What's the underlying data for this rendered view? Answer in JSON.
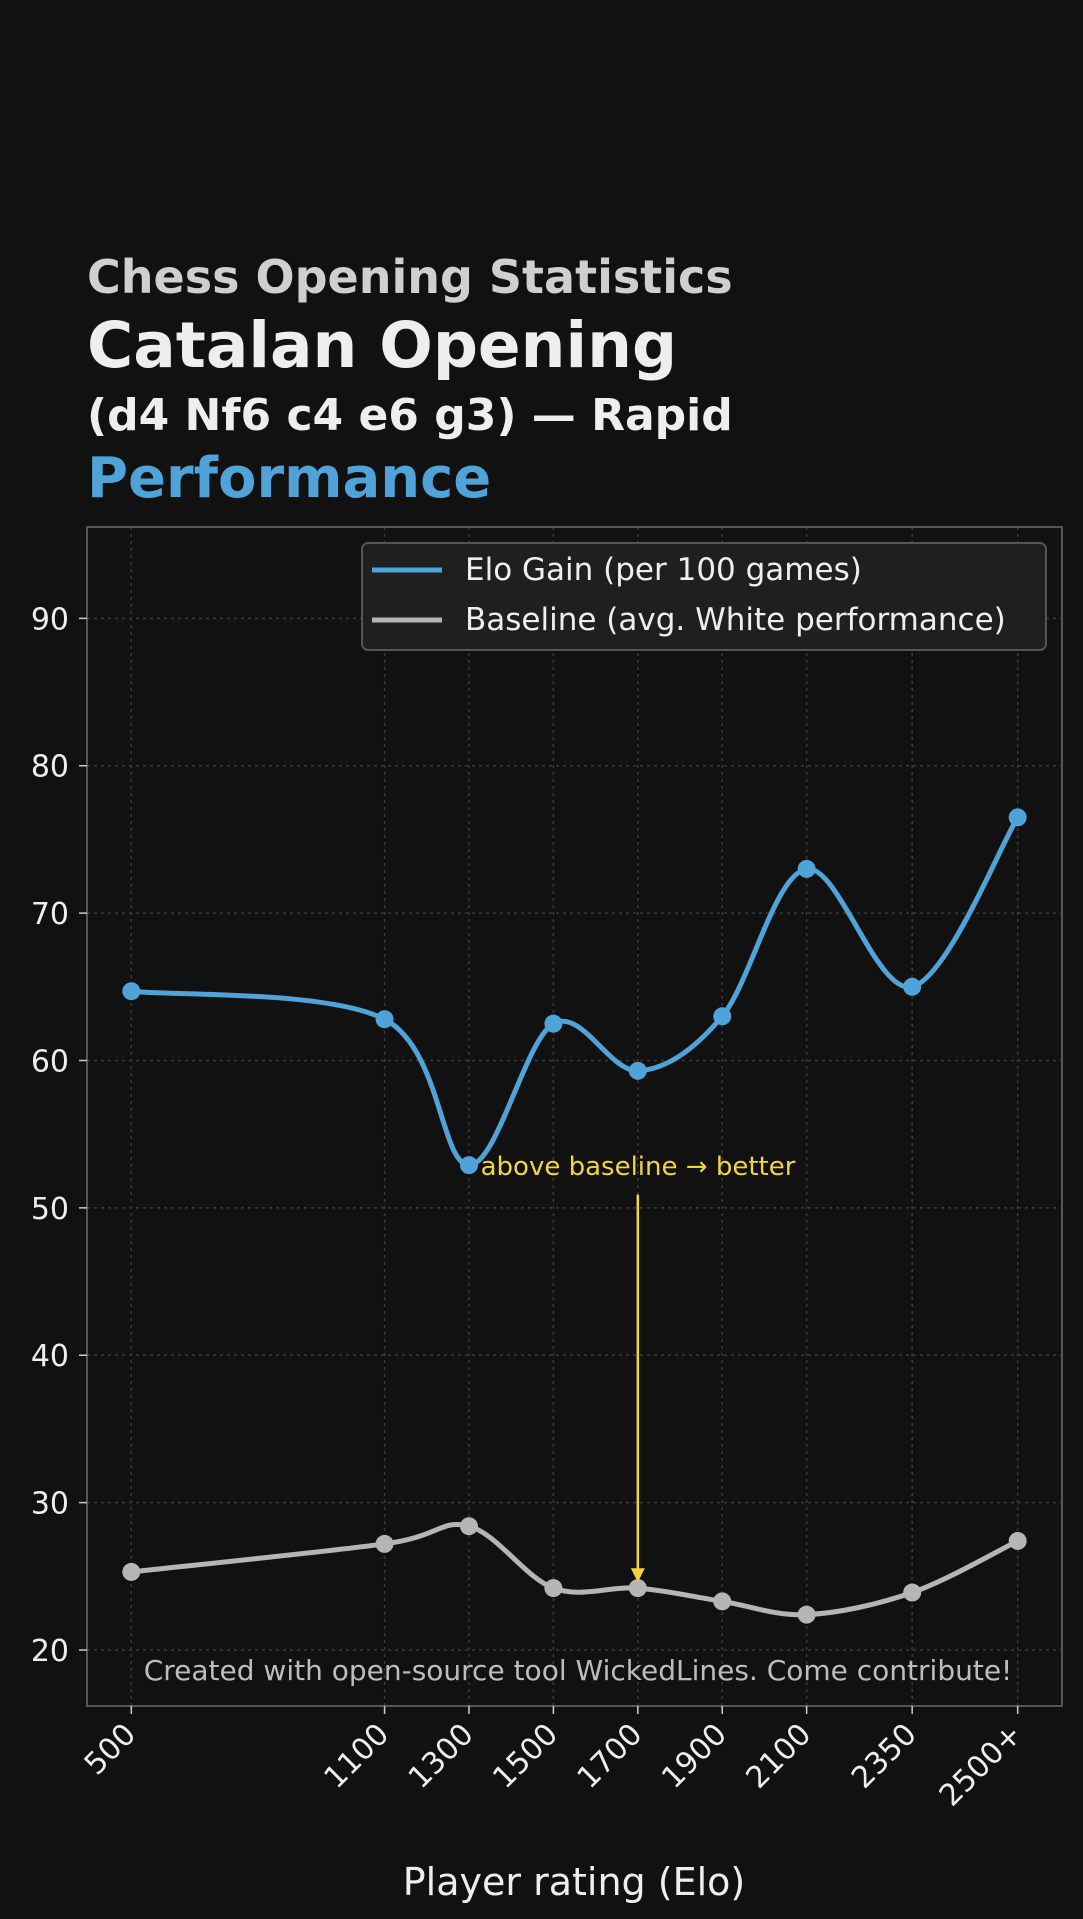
{
  "header": {
    "supertitle": "Chess Opening Statistics",
    "title_line1": "Catalan Opening",
    "title_line2": "(d4 Nf6 c4 e6 g3) — Rapid",
    "title_line3": "Performance"
  },
  "colors": {
    "background": "#111111",
    "elo_series": "#4fa3d8",
    "baseline_series": "#b5b5b5",
    "annotation": "#f2d43f",
    "text": "#eeeeee"
  },
  "chart_data": {
    "type": "line",
    "categories": [
      "500",
      "1100",
      "1300",
      "1500",
      "1700",
      "1900",
      "2100",
      "2350",
      "2500+"
    ],
    "x": [
      500,
      1100,
      1300,
      1500,
      1700,
      1900,
      2100,
      2350,
      2600
    ],
    "series": [
      {
        "name": "Elo Gain (per 100 games)",
        "values": [
          64.7,
          62.8,
          52.9,
          62.5,
          59.3,
          63.0,
          73.0,
          65.0,
          76.5
        ]
      },
      {
        "name": "Baseline (avg. White performance)",
        "values": [
          25.3,
          27.2,
          28.4,
          24.2,
          24.2,
          23.3,
          22.4,
          23.9,
          27.4
        ]
      }
    ],
    "xlabel": "Player rating (Elo)",
    "ylabel": "",
    "xlim": [
      395,
      2705
    ],
    "ylim": [
      16.2,
      96.2
    ],
    "yticks": [
      20,
      30,
      40,
      50,
      60,
      70,
      80,
      90
    ],
    "grid": true,
    "legend_position": "top-right",
    "annotation": {
      "text": "above baseline → better",
      "arrow_from": [
        1700,
        50.9
      ],
      "arrow_to": [
        1700,
        24.6
      ]
    },
    "footer_text": "Created with open-source tool WickedLines. Come contribute!"
  }
}
